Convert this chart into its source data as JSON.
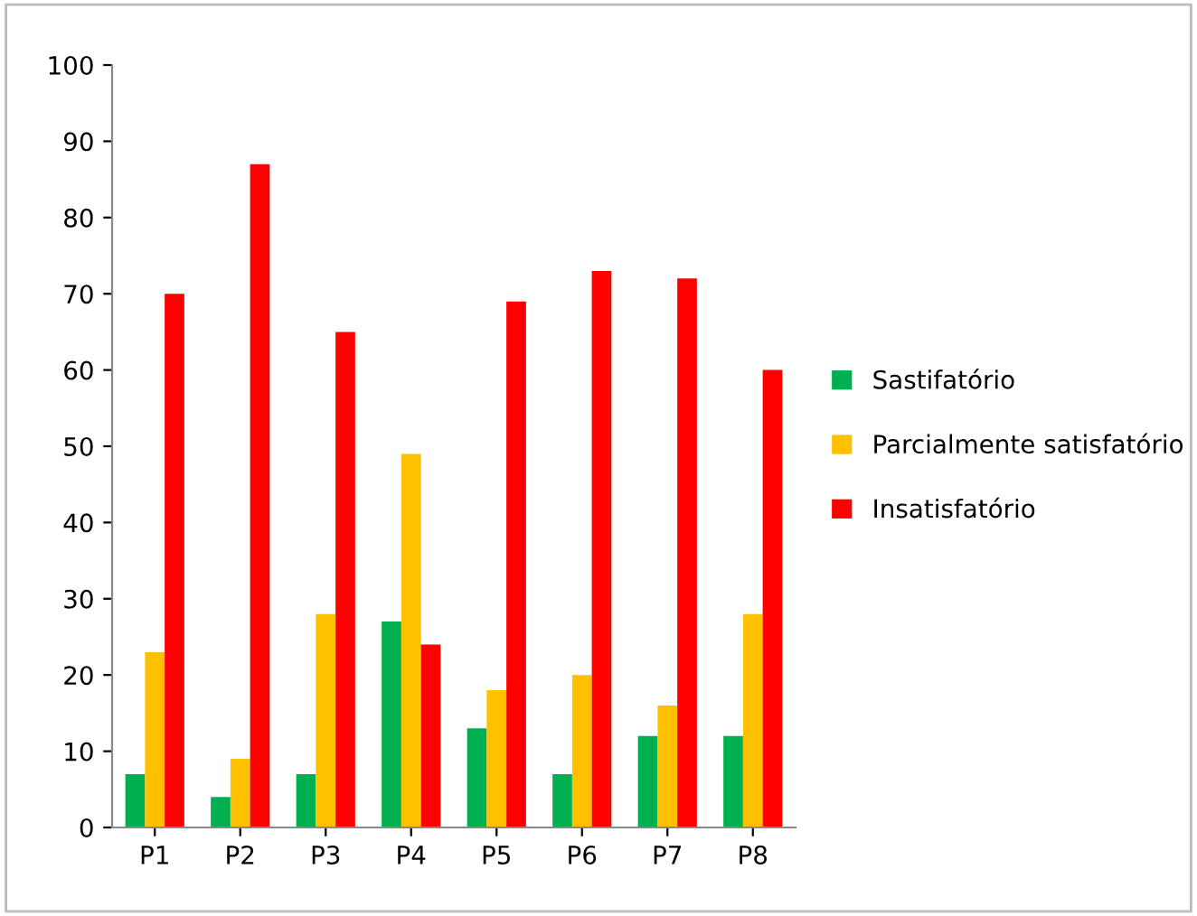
{
  "chart_data": {
    "type": "bar",
    "categories": [
      "P1",
      "P2",
      "P3",
      "P4",
      "P5",
      "P6",
      "P7",
      "P8"
    ],
    "series": [
      {
        "name": "Sastifatório",
        "color": "#00b050",
        "values": [
          7,
          4,
          7,
          27,
          13,
          7,
          12,
          12
        ]
      },
      {
        "name": "Parcialmente satisfatório",
        "color": "#ffc000",
        "values": [
          23,
          9,
          28,
          49,
          18,
          20,
          16,
          28
        ]
      },
      {
        "name": "Insatisfatório",
        "color": "#ff0000",
        "values": [
          70,
          87,
          65,
          24,
          69,
          73,
          72,
          60
        ]
      }
    ],
    "ylim": [
      0,
      100
    ],
    "yticks": [
      0,
      10,
      20,
      30,
      40,
      50,
      60,
      70,
      80,
      90,
      100
    ],
    "grid": false,
    "legend": "right"
  }
}
